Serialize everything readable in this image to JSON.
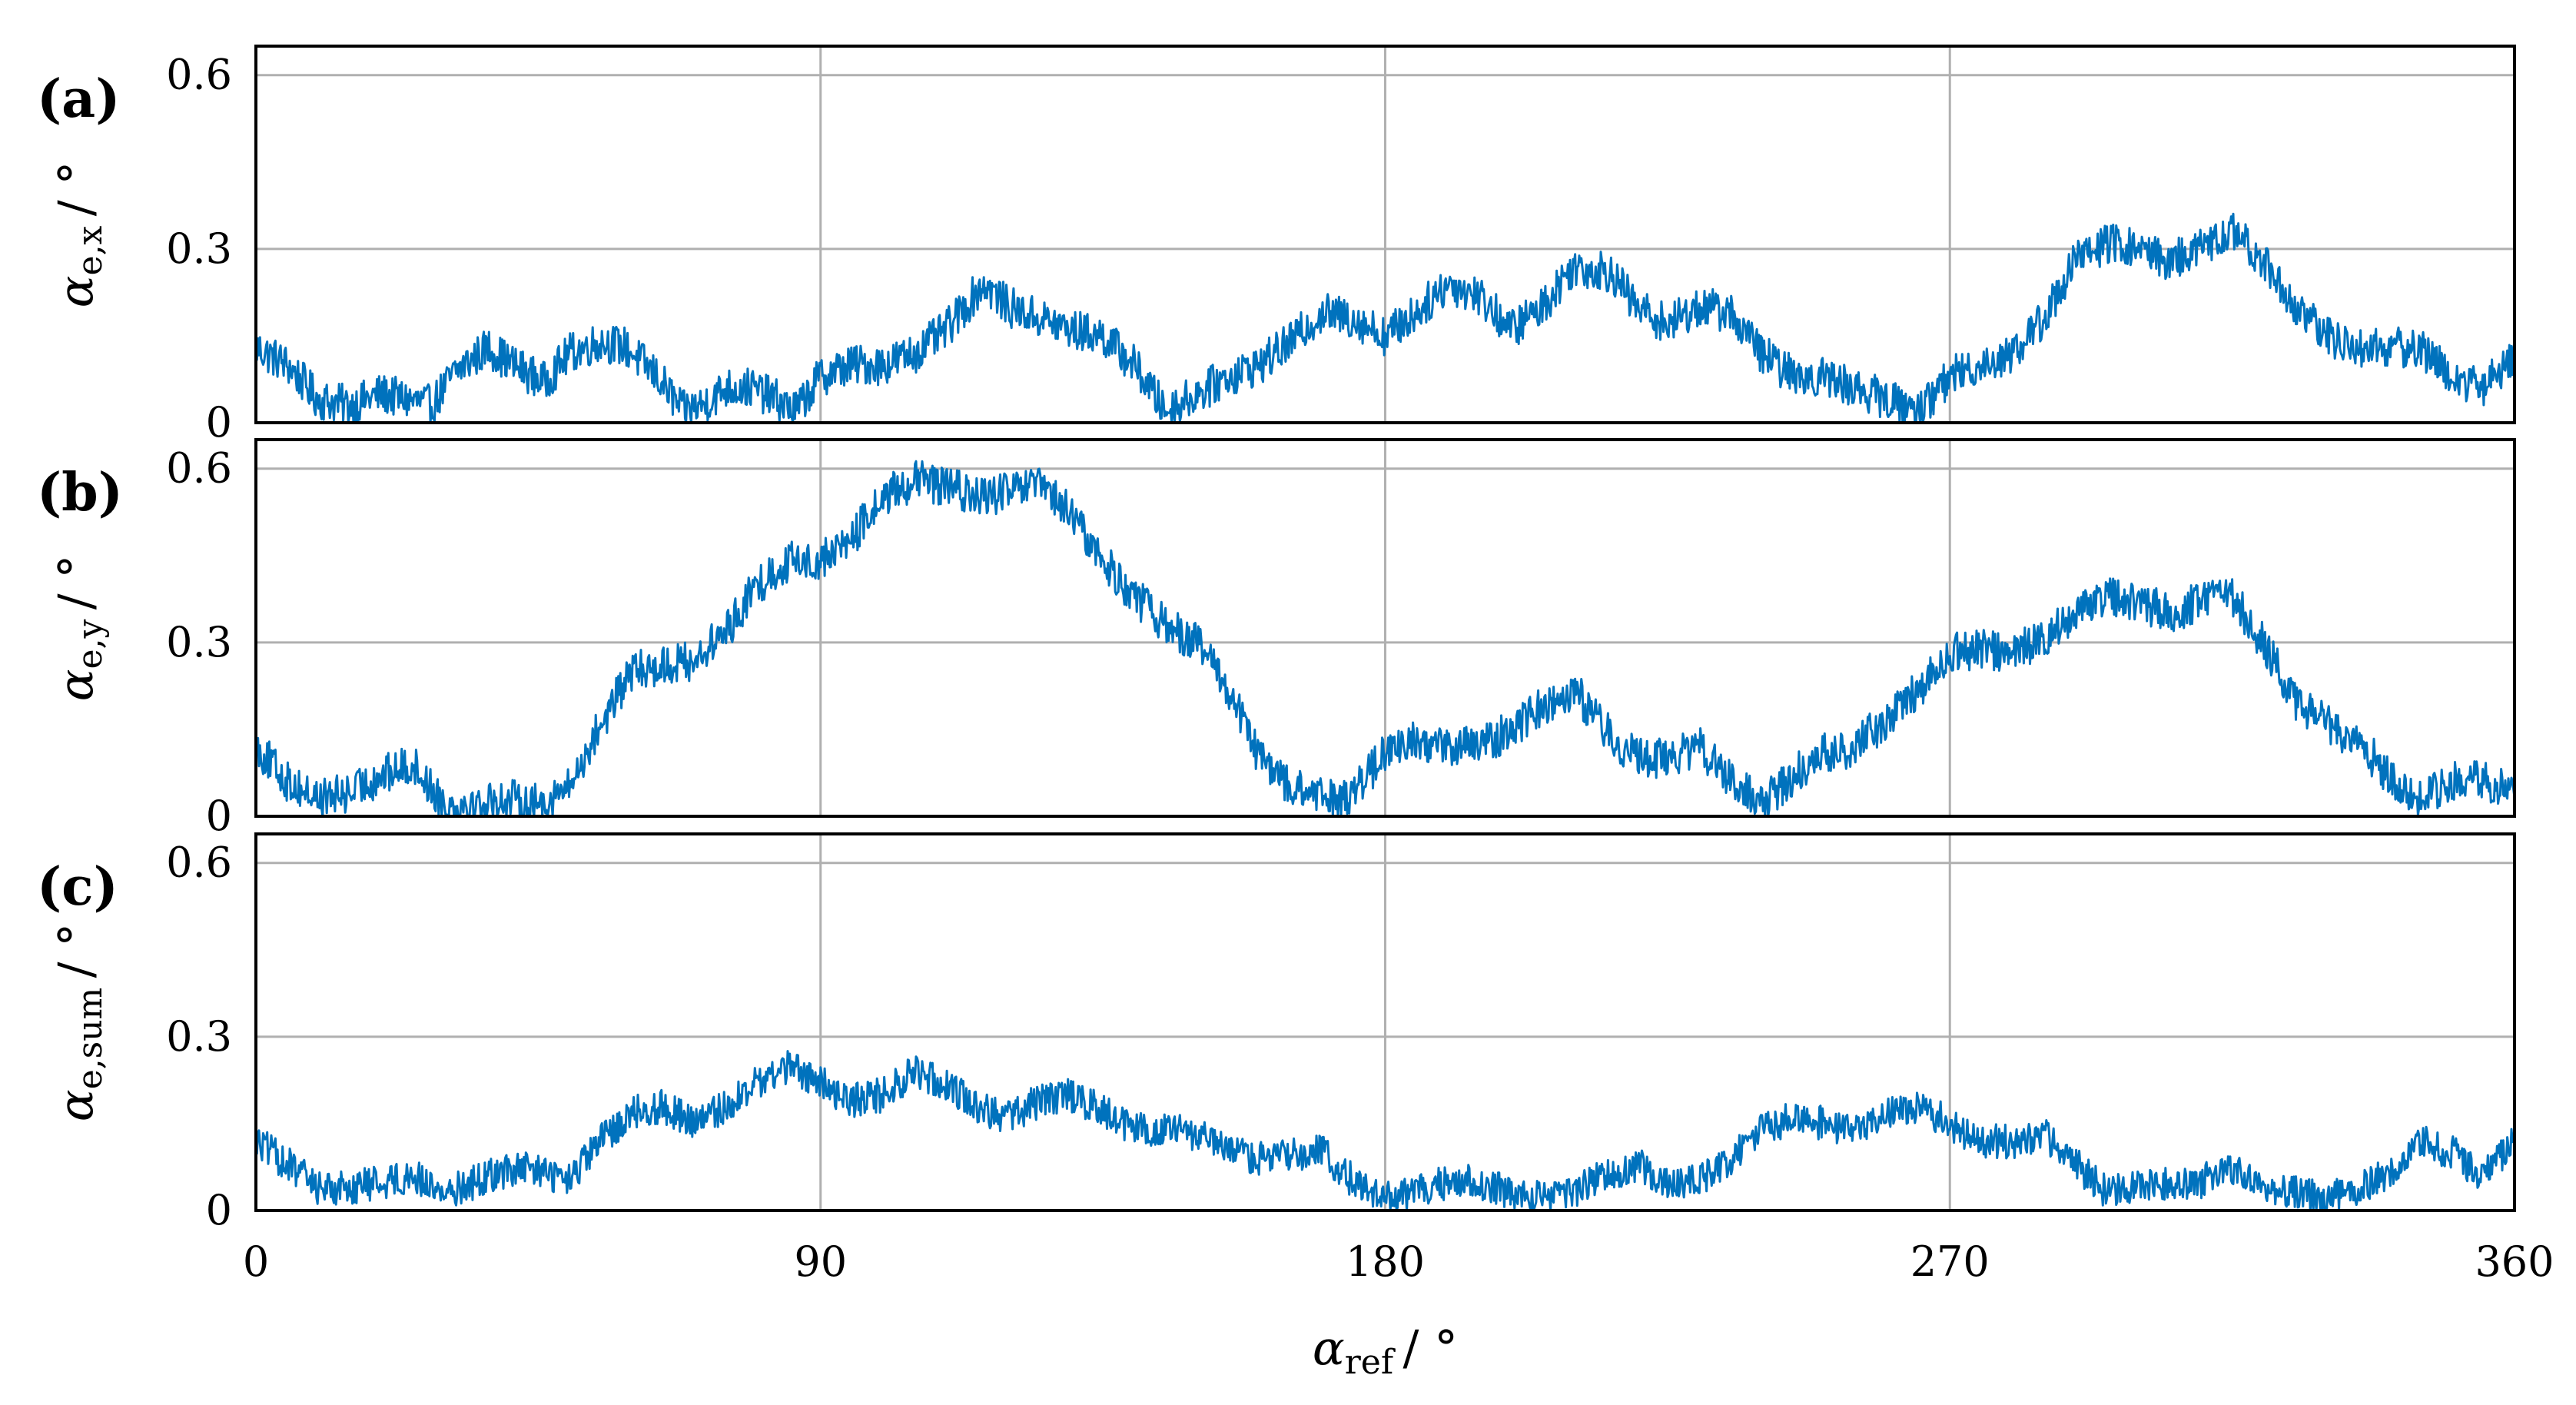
{
  "chart_data": [
    {
      "type": "line",
      "panel_label": "(a)",
      "ylabel_symbol": "α",
      "ylabel_sub": "e,x",
      "ylabel_unit": "/ °",
      "xlim": [
        0,
        360
      ],
      "ylim": [
        0,
        0.65
      ],
      "xticks": [
        0,
        90,
        180,
        270,
        360
      ],
      "yticks": [
        0,
        0.3,
        0.6
      ],
      "ytick_labels": [
        "0",
        "0.3",
        "0.6"
      ],
      "grid": true,
      "color": "#0072BD",
      "x": [
        0,
        5,
        10,
        15,
        20,
        28,
        32,
        37,
        41,
        46,
        50,
        55,
        59,
        64,
        68,
        71,
        75,
        79,
        83,
        86,
        90,
        95,
        100,
        105,
        110,
        116,
        120,
        125,
        130,
        135,
        140,
        145,
        150,
        155,
        160,
        165,
        170,
        175,
        180,
        185,
        190,
        195,
        200,
        205,
        210,
        216,
        220,
        225,
        230,
        235,
        240,
        245,
        250,
        255,
        260,
        265,
        270,
        275,
        280,
        285,
        290,
        295,
        300,
        305,
        310,
        315,
        320,
        325,
        330,
        335,
        340,
        345,
        350,
        355,
        360
      ],
      "y": [
        0.13,
        0.1,
        0.04,
        0.03,
        0.05,
        0.03,
        0.09,
        0.13,
        0.1,
        0.07,
        0.12,
        0.14,
        0.13,
        0.08,
        0.02,
        0.03,
        0.06,
        0.06,
        0.04,
        0.02,
        0.08,
        0.1,
        0.1,
        0.12,
        0.16,
        0.24,
        0.2,
        0.18,
        0.16,
        0.15,
        0.1,
        0.02,
        0.05,
        0.08,
        0.1,
        0.14,
        0.19,
        0.18,
        0.15,
        0.19,
        0.24,
        0.22,
        0.16,
        0.2,
        0.27,
        0.26,
        0.2,
        0.17,
        0.2,
        0.19,
        0.12,
        0.08,
        0.08,
        0.06,
        0.04,
        0.02,
        0.08,
        0.1,
        0.12,
        0.18,
        0.28,
        0.31,
        0.3,
        0.28,
        0.3,
        0.33,
        0.28,
        0.2,
        0.15,
        0.13,
        0.13,
        0.13,
        0.08,
        0.06,
        0.12
      ],
      "noise": 0.035
    },
    {
      "type": "line",
      "panel_label": "(b)",
      "ylabel_symbol": "α",
      "ylabel_sub": "e,y",
      "ylabel_unit": "/ °",
      "xlim": [
        0,
        360
      ],
      "ylim": [
        0,
        0.65
      ],
      "xticks": [
        0,
        90,
        180,
        270,
        360
      ],
      "yticks": [
        0,
        0.3,
        0.6
      ],
      "ytick_labels": [
        "0",
        "0.3",
        "0.6"
      ],
      "grid": true,
      "color": "#0072BD",
      "x": [
        0,
        5,
        10,
        15,
        20,
        25,
        30,
        35,
        40,
        45,
        50,
        55,
        60,
        65,
        70,
        75,
        80,
        85,
        90,
        95,
        100,
        105,
        110,
        115,
        120,
        125,
        130,
        135,
        140,
        145,
        150,
        155,
        160,
        165,
        170,
        175,
        180,
        185,
        190,
        195,
        200,
        205,
        210,
        215,
        220,
        225,
        230,
        235,
        240,
        245,
        250,
        255,
        260,
        265,
        270,
        275,
        280,
        285,
        290,
        295,
        300,
        305,
        310,
        315,
        320,
        325,
        330,
        335,
        340,
        345,
        350,
        355,
        360
      ],
      "y": [
        0.12,
        0.06,
        0.03,
        0.04,
        0.07,
        0.09,
        0.02,
        0.02,
        0.03,
        0.02,
        0.05,
        0.16,
        0.25,
        0.26,
        0.27,
        0.32,
        0.4,
        0.44,
        0.44,
        0.48,
        0.55,
        0.58,
        0.57,
        0.55,
        0.56,
        0.57,
        0.52,
        0.44,
        0.38,
        0.33,
        0.3,
        0.22,
        0.1,
        0.05,
        0.03,
        0.04,
        0.11,
        0.13,
        0.12,
        0.12,
        0.15,
        0.19,
        0.22,
        0.15,
        0.1,
        0.1,
        0.12,
        0.06,
        0.02,
        0.07,
        0.11,
        0.12,
        0.17,
        0.22,
        0.28,
        0.29,
        0.28,
        0.31,
        0.35,
        0.38,
        0.37,
        0.35,
        0.37,
        0.38,
        0.3,
        0.2,
        0.16,
        0.13,
        0.07,
        0.03,
        0.06,
        0.06,
        0.04
      ],
      "noise": 0.035
    },
    {
      "type": "line",
      "panel_label": "(c)",
      "ylabel_symbol": "α",
      "ylabel_sub": "e,sum",
      "ylabel_unit": "/ °",
      "xlim": [
        0,
        360
      ],
      "ylim": [
        0,
        0.65
      ],
      "xticks": [
        0,
        90,
        180,
        270,
        360
      ],
      "yticks": [
        0,
        0.3,
        0.6
      ],
      "ytick_labels": [
        "0",
        "0.3",
        "0.6"
      ],
      "xtick_labels": [
        "0",
        "90",
        "180",
        "270",
        "360"
      ],
      "grid": true,
      "color": "#0072BD",
      "x": [
        0,
        5,
        10,
        15,
        20,
        25,
        30,
        35,
        40,
        45,
        50,
        55,
        60,
        65,
        70,
        75,
        80,
        85,
        90,
        95,
        100,
        105,
        110,
        115,
        120,
        125,
        130,
        135,
        140,
        145,
        150,
        155,
        160,
        165,
        170,
        175,
        180,
        185,
        190,
        195,
        200,
        205,
        210,
        215,
        220,
        225,
        230,
        235,
        240,
        245,
        250,
        255,
        260,
        265,
        270,
        275,
        280,
        285,
        290,
        295,
        300,
        305,
        310,
        315,
        320,
        325,
        330,
        335,
        340,
        345,
        350,
        355,
        360
      ],
      "y": [
        0.12,
        0.08,
        0.04,
        0.04,
        0.05,
        0.06,
        0.03,
        0.05,
        0.07,
        0.07,
        0.05,
        0.12,
        0.17,
        0.18,
        0.15,
        0.18,
        0.22,
        0.25,
        0.22,
        0.19,
        0.2,
        0.24,
        0.22,
        0.18,
        0.16,
        0.19,
        0.2,
        0.17,
        0.14,
        0.14,
        0.13,
        0.1,
        0.09,
        0.1,
        0.1,
        0.05,
        0.02,
        0.03,
        0.05,
        0.05,
        0.03,
        0.02,
        0.03,
        0.06,
        0.08,
        0.05,
        0.05,
        0.09,
        0.14,
        0.16,
        0.15,
        0.14,
        0.17,
        0.18,
        0.15,
        0.12,
        0.12,
        0.13,
        0.08,
        0.03,
        0.04,
        0.05,
        0.05,
        0.07,
        0.04,
        0.03,
        0.02,
        0.04,
        0.06,
        0.12,
        0.1,
        0.06,
        0.12
      ],
      "noise": 0.03
    }
  ],
  "xlabel_symbol": "α",
  "xlabel_sub": "ref",
  "xlabel_unit": "/ °"
}
